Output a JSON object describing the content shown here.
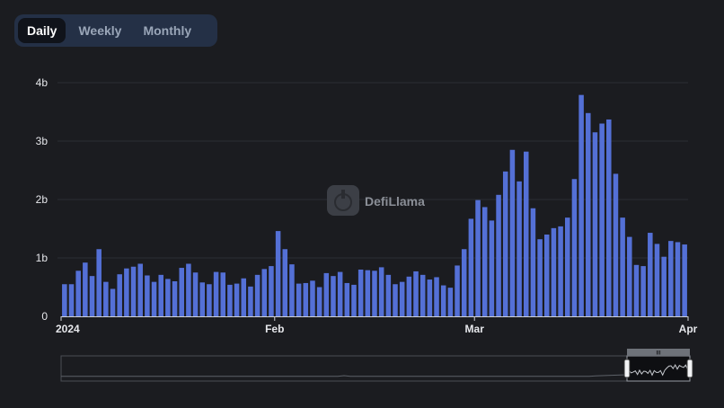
{
  "tabs": [
    {
      "label": "Daily",
      "active": true
    },
    {
      "label": "Weekly",
      "active": false
    },
    {
      "label": "Monthly",
      "active": false
    }
  ],
  "watermark": {
    "text": "DefiLlama",
    "icon": "defillama-logo-icon"
  },
  "colors": {
    "bar": "#5470d6",
    "grid": "#2b2e35",
    "background": "#1b1c20",
    "brush_selection": "#0e0f12"
  },
  "chart_data": {
    "type": "bar",
    "title": "",
    "xlabel": "",
    "ylabel": "",
    "ylim": [
      0,
      4000000000
    ],
    "y_ticks": [
      {
        "value": 0,
        "label": "0"
      },
      {
        "value": 1000000000,
        "label": "1b"
      },
      {
        "value": 2000000000,
        "label": "2b"
      },
      {
        "value": 3000000000,
        "label": "3b"
      },
      {
        "value": 4000000000,
        "label": "4b"
      }
    ],
    "x_ticks": [
      {
        "date": "2024-01-01",
        "label": "2024"
      },
      {
        "date": "2024-02-01",
        "label": "Feb"
      },
      {
        "date": "2024-03-01",
        "label": "Mar"
      },
      {
        "date": "2024-04-01",
        "label": "Apr"
      }
    ],
    "x_start": "2024-01-01",
    "x_end": "2024-04-01",
    "grid": true,
    "legend": "none",
    "brush": {
      "selected_fraction": [
        0.9,
        1.0
      ],
      "label": "III"
    },
    "series": [
      {
        "x": [
          "2024-01-01",
          "2024-01-02",
          "2024-01-03",
          "2024-01-04",
          "2024-01-05",
          "2024-01-06",
          "2024-01-07",
          "2024-01-08",
          "2024-01-09",
          "2024-01-10",
          "2024-01-11",
          "2024-01-12",
          "2024-01-13",
          "2024-01-14",
          "2024-01-15",
          "2024-01-16",
          "2024-01-17",
          "2024-01-18",
          "2024-01-19",
          "2024-01-20",
          "2024-01-21",
          "2024-01-22",
          "2024-01-23",
          "2024-01-24",
          "2024-01-25",
          "2024-01-26",
          "2024-01-27",
          "2024-01-28",
          "2024-01-29",
          "2024-01-30",
          "2024-01-31",
          "2024-02-01",
          "2024-02-02",
          "2024-02-03",
          "2024-02-04",
          "2024-02-05",
          "2024-02-06",
          "2024-02-07",
          "2024-02-08",
          "2024-02-09",
          "2024-02-10",
          "2024-02-11",
          "2024-02-12",
          "2024-02-13",
          "2024-02-14",
          "2024-02-15",
          "2024-02-16",
          "2024-02-17",
          "2024-02-18",
          "2024-02-19",
          "2024-02-20",
          "2024-02-21",
          "2024-02-22",
          "2024-02-23",
          "2024-02-24",
          "2024-02-25",
          "2024-02-26",
          "2024-02-27",
          "2024-02-28",
          "2024-02-29",
          "2024-03-01",
          "2024-03-02",
          "2024-03-03",
          "2024-03-04",
          "2024-03-05",
          "2024-03-06",
          "2024-03-07",
          "2024-03-08",
          "2024-03-09",
          "2024-03-10",
          "2024-03-11",
          "2024-03-12",
          "2024-03-13",
          "2024-03-14",
          "2024-03-15",
          "2024-03-16",
          "2024-03-17",
          "2024-03-18",
          "2024-03-19",
          "2024-03-20",
          "2024-03-21",
          "2024-03-22",
          "2024-03-23",
          "2024-03-24",
          "2024-03-25",
          "2024-03-26",
          "2024-03-27",
          "2024-03-28",
          "2024-03-29",
          "2024-03-30",
          "2024-03-31"
        ],
        "values": [
          550000000,
          550000000,
          780000000,
          920000000,
          690000000,
          1150000000,
          590000000,
          470000000,
          720000000,
          820000000,
          850000000,
          900000000,
          700000000,
          590000000,
          710000000,
          640000000,
          600000000,
          830000000,
          900000000,
          750000000,
          580000000,
          550000000,
          760000000,
          750000000,
          540000000,
          560000000,
          650000000,
          510000000,
          710000000,
          810000000,
          860000000,
          1460000000,
          1150000000,
          890000000,
          560000000,
          570000000,
          610000000,
          500000000,
          740000000,
          690000000,
          760000000,
          570000000,
          540000000,
          800000000,
          790000000,
          780000000,
          840000000,
          710000000,
          550000000,
          590000000,
          680000000,
          770000000,
          710000000,
          630000000,
          670000000,
          530000000,
          490000000,
          870000000,
          1150000000,
          1670000000,
          1990000000,
          1870000000,
          1640000000,
          2080000000,
          2480000000,
          2850000000,
          2310000000,
          2820000000,
          1850000000,
          1320000000,
          1400000000,
          1510000000,
          1540000000,
          1690000000,
          2350000000,
          3790000000,
          3480000000,
          3150000000,
          3300000000,
          3370000000,
          2440000000,
          1690000000,
          1360000000,
          880000000,
          860000000,
          1430000000,
          1240000000,
          1020000000,
          1290000000,
          1270000000,
          1230000000
        ]
      }
    ]
  }
}
